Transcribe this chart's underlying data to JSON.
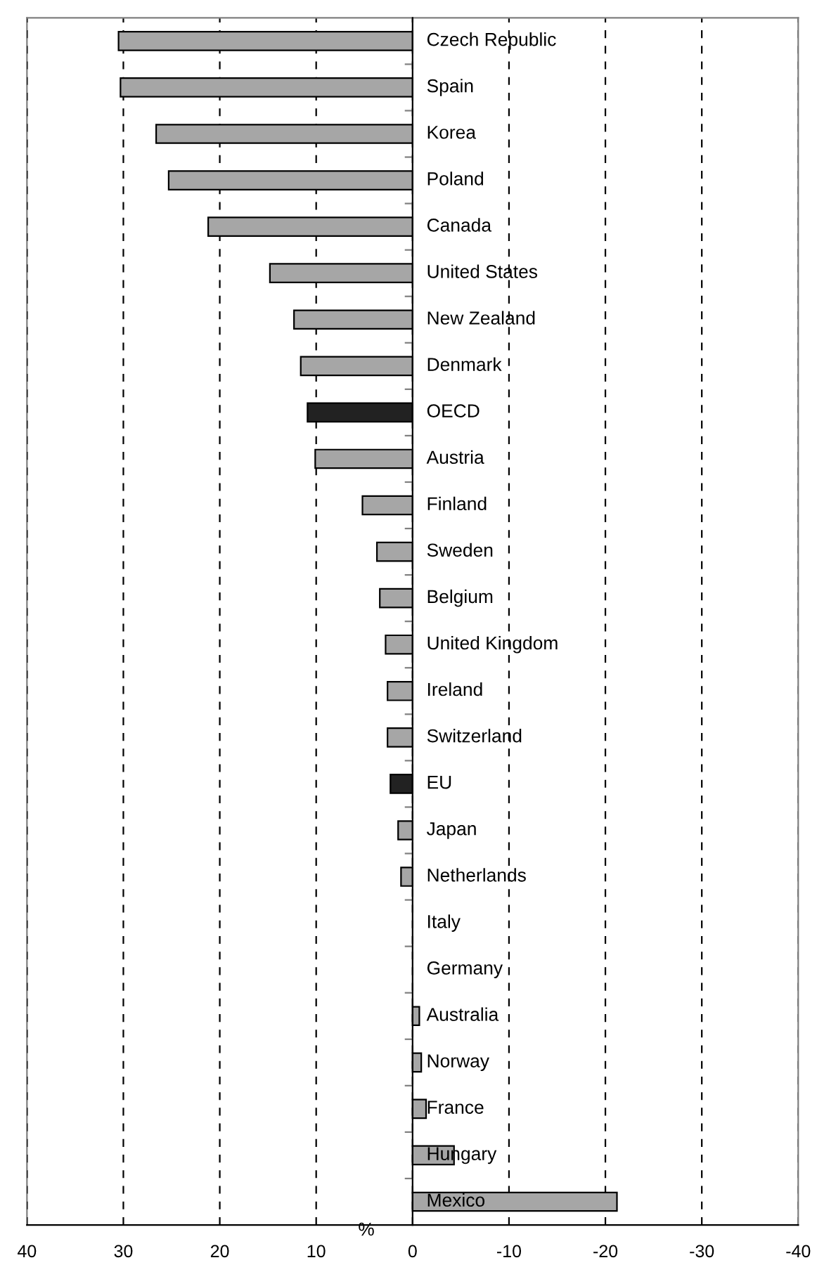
{
  "chart_data": {
    "type": "bar",
    "orientation": "horizontal",
    "categories": [
      "Czech Republic",
      "Spain",
      "Korea",
      "Poland",
      "Canada",
      "United States",
      "New Zealand",
      "Denmark",
      "OECD",
      "Austria",
      "Finland",
      "Sweden",
      "Belgium",
      "United Kingdom",
      "Ireland",
      "Switzerland",
      "EU",
      "Japan",
      "Netherlands",
      "Italy",
      "Germany",
      "Australia",
      "Norway",
      "France",
      "Hungary",
      "Mexico"
    ],
    "values": [
      30.5,
      30.3,
      26.6,
      25.3,
      21.2,
      14.8,
      12.3,
      11.6,
      10.9,
      10.1,
      5.2,
      3.7,
      3.4,
      2.8,
      2.6,
      2.6,
      2.3,
      1.5,
      1.2,
      0,
      0,
      -0.7,
      -0.9,
      -1.4,
      -4.3,
      -21.2
    ],
    "colors": [
      "#a6a6a6",
      "#a6a6a6",
      "#a6a6a6",
      "#a6a6a6",
      "#a6a6a6",
      "#a6a6a6",
      "#a6a6a6",
      "#a6a6a6",
      "#222222",
      "#a6a6a6",
      "#a6a6a6",
      "#a6a6a6",
      "#a6a6a6",
      "#a6a6a6",
      "#a6a6a6",
      "#a6a6a6",
      "#222222",
      "#a6a6a6",
      "#a6a6a6",
      "#a6a6a6",
      "#a6a6a6",
      "#a6a6a6",
      "#a6a6a6",
      "#a6a6a6",
      "#a6a6a6",
      "#a6a6a6"
    ],
    "xlim": [
      40,
      -40
    ],
    "xticks": [
      40,
      30,
      20,
      10,
      0,
      -10,
      -20,
      -30,
      -40
    ],
    "xlabel": "%",
    "grid": "x",
    "tick_labels": "x"
  }
}
